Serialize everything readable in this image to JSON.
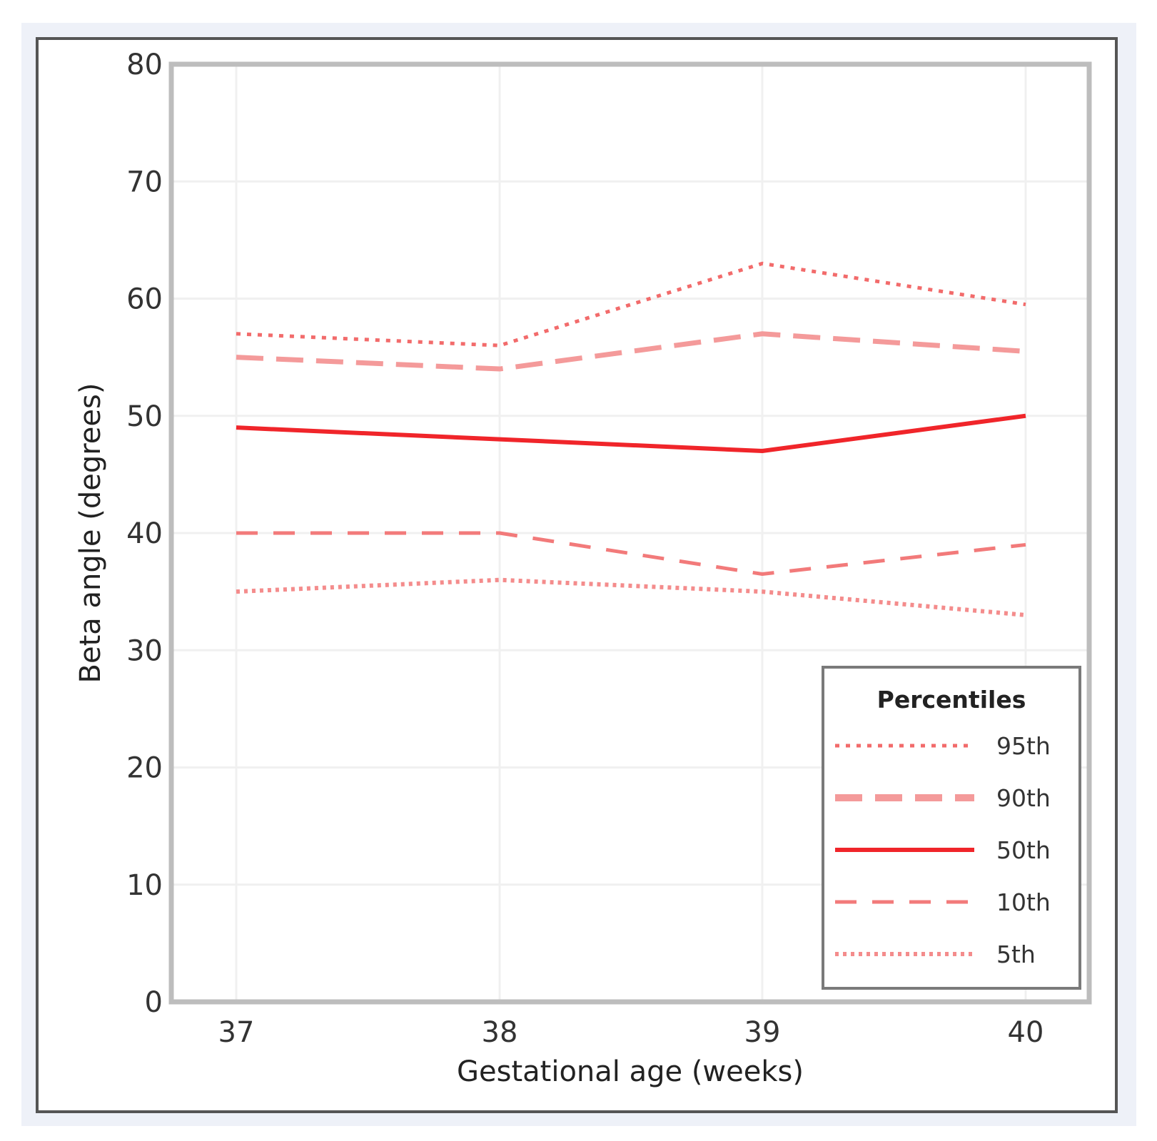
{
  "chart_data": {
    "type": "line",
    "title": "",
    "xlabel": "Gestational age (weeks)",
    "ylabel": "Beta angle (degrees)",
    "x": [
      37,
      38,
      39,
      40
    ],
    "x_tick_labels": [
      "37",
      "38",
      "39",
      "40"
    ],
    "ylim": [
      0,
      80
    ],
    "y_ticks": [
      0,
      10,
      20,
      30,
      40,
      50,
      60,
      70,
      80
    ],
    "y_tick_labels": [
      "0",
      "10",
      "20",
      "30",
      "40",
      "50",
      "60",
      "70",
      "80"
    ],
    "grid": true,
    "legend": {
      "title": "Percentiles",
      "placement": "bottom-right"
    },
    "series": [
      {
        "name": "95th",
        "style": "dotted",
        "color": "#f26b6b",
        "values": [
          57,
          56,
          63,
          59.5
        ]
      },
      {
        "name": "90th",
        "style": "longdash",
        "color": "#f49a9a",
        "values": [
          55,
          54,
          57,
          55.5
        ]
      },
      {
        "name": "50th",
        "style": "solid",
        "color": "#f0252a",
        "values": [
          49,
          48,
          47,
          50
        ]
      },
      {
        "name": "10th",
        "style": "dash",
        "color": "#f27a7a",
        "values": [
          40,
          40,
          36.5,
          39
        ]
      },
      {
        "name": "5th",
        "style": "dotted-dense",
        "color": "#f48c8c",
        "values": [
          35,
          36,
          35,
          33
        ]
      }
    ]
  }
}
